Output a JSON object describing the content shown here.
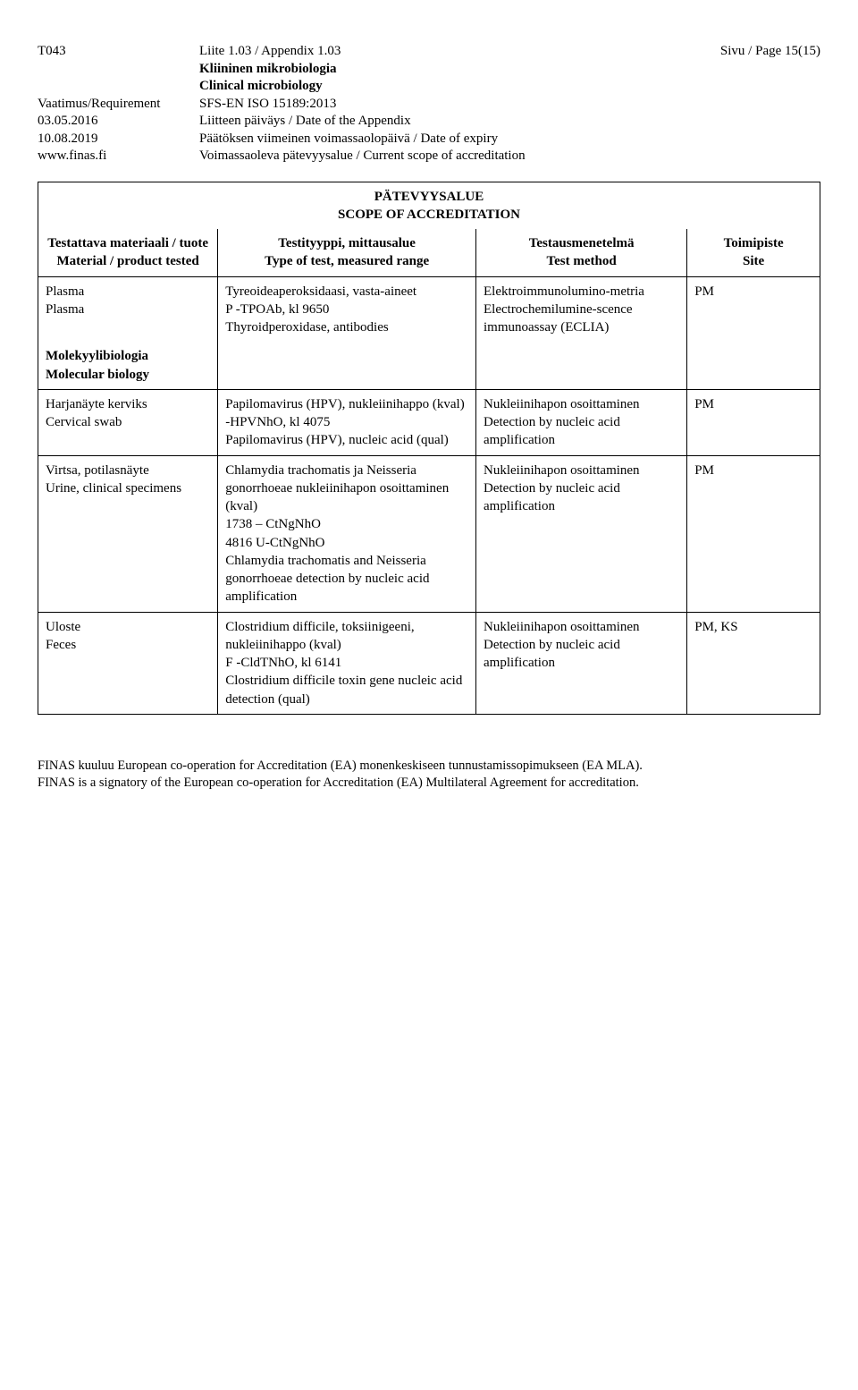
{
  "header": {
    "code": "T043",
    "req_label": "Vaatimus/Requirement",
    "date1": "03.05.2016",
    "date2": "10.08.2019",
    "url": "www.finas.fi",
    "appendix": "Liite 1.03 / Appendix 1.03",
    "dept_fi_bold": "Kliininen mikrobiologia",
    "dept_en_bold": "Clinical microbiology",
    "standard": "SFS-EN ISO 15189:2013",
    "date_appendix": "Liitteen päiväys / Date of the Appendix",
    "expiry": "Päätöksen viimeinen voimassaolopäivä / Date of expiry",
    "scope": "Voimassaoleva pätevyysalue / Current scope of accreditation",
    "page": "Sivu / Page 15(15)"
  },
  "table": {
    "title_fi": "PÄTEVYYSALUE",
    "title_en": "SCOPE OF ACCREDITATION",
    "h_material_fi": "Testattava materiaali / tuote",
    "h_material_en": "Material / product tested",
    "h_test_fi": "Testityyppi, mittausalue",
    "h_test_en": "Type of test, measured range",
    "h_method_fi": "Testausmenetelmä",
    "h_method_en": "Test method",
    "h_site_fi": "Toimipiste",
    "h_site_en": "Site"
  },
  "rows": {
    "r1": {
      "mat": "Plasma\nPlasma",
      "test": "Tyreoideaperoksidaasi, vasta-aineet\nP -TPOAb, kl 9650\nThyroidperoxidase, antibodies",
      "method": "Elektroimmunolumino-metria\nElectrochemilumine-scence immunoassay (ECLIA)",
      "site": "PM"
    },
    "section": {
      "fi": "Molekyylibiologia",
      "en": "Molecular biology"
    },
    "r2": {
      "mat": "Harjanäyte kerviks\nCervical swab",
      "test": "Papilomavirus (HPV), nukleiinihappo (kval)\n-HPVNhO, kl 4075\nPapilomavirus (HPV), nucleic acid (qual)",
      "method": "Nukleiinihapon osoittaminen\nDetection by nucleic acid amplification",
      "site": "PM"
    },
    "r3": {
      "mat": "Virtsa, potilasnäyte\nUrine, clinical specimens",
      "test": "Chlamydia trachomatis ja Neisseria gonorrhoeae nukleiinihapon osoittaminen (kval)\n1738 – CtNgNhO\n4816 U-CtNgNhO\nChlamydia trachomatis and Neisseria gonorrhoeae detection by nucleic acid amplification",
      "method": "Nukleiinihapon osoittaminen\nDetection by nucleic acid amplification",
      "site": "PM"
    },
    "r4": {
      "mat": "Uloste\nFeces",
      "test": "Clostridium difficile, toksiinigeeni, nukleiinihappo (kval)\nF -CldTNhO, kl 6141\nClostridium difficile toxin gene nucleic acid detection (qual)",
      "method": "Nukleiinihapon osoittaminen\nDetection by nucleic acid amplification",
      "site": "PM, KS"
    }
  },
  "footer": {
    "line1": "FINAS kuuluu European co-operation for Accreditation (EA) monenkeskiseen tunnustamissopimukseen (EA MLA).",
    "line2": "FINAS is a signatory of the European co-operation for Accreditation (EA) Multilateral Agreement for accreditation."
  }
}
